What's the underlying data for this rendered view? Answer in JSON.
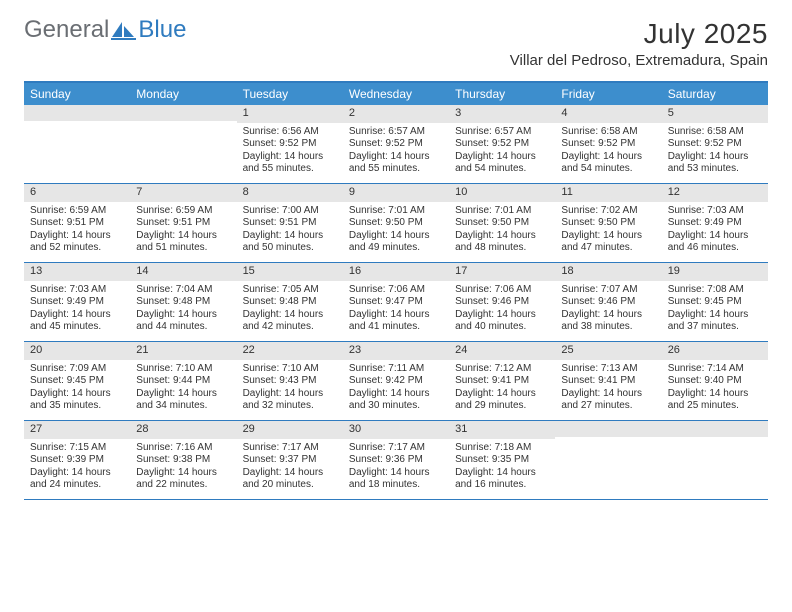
{
  "brand": {
    "part1": "General",
    "part2": "Blue"
  },
  "title": "July 2025",
  "location": "Villar del Pedroso, Extremadura, Spain",
  "colors": {
    "header_bg": "#3d8ecd",
    "accent_border": "#2f7bbf",
    "daynum_bg": "#e6e6e6",
    "text": "#333333",
    "white": "#ffffff",
    "logo_gray": "#6a6e73"
  },
  "daysOfWeek": [
    "Sunday",
    "Monday",
    "Tuesday",
    "Wednesday",
    "Thursday",
    "Friday",
    "Saturday"
  ],
  "weeks": [
    [
      null,
      null,
      {
        "n": "1",
        "sr": "6:56 AM",
        "ss": "9:52 PM",
        "dl": "14 hours and 55 minutes."
      },
      {
        "n": "2",
        "sr": "6:57 AM",
        "ss": "9:52 PM",
        "dl": "14 hours and 55 minutes."
      },
      {
        "n": "3",
        "sr": "6:57 AM",
        "ss": "9:52 PM",
        "dl": "14 hours and 54 minutes."
      },
      {
        "n": "4",
        "sr": "6:58 AM",
        "ss": "9:52 PM",
        "dl": "14 hours and 54 minutes."
      },
      {
        "n": "5",
        "sr": "6:58 AM",
        "ss": "9:52 PM",
        "dl": "14 hours and 53 minutes."
      }
    ],
    [
      {
        "n": "6",
        "sr": "6:59 AM",
        "ss": "9:51 PM",
        "dl": "14 hours and 52 minutes."
      },
      {
        "n": "7",
        "sr": "6:59 AM",
        "ss": "9:51 PM",
        "dl": "14 hours and 51 minutes."
      },
      {
        "n": "8",
        "sr": "7:00 AM",
        "ss": "9:51 PM",
        "dl": "14 hours and 50 minutes."
      },
      {
        "n": "9",
        "sr": "7:01 AM",
        "ss": "9:50 PM",
        "dl": "14 hours and 49 minutes."
      },
      {
        "n": "10",
        "sr": "7:01 AM",
        "ss": "9:50 PM",
        "dl": "14 hours and 48 minutes."
      },
      {
        "n": "11",
        "sr": "7:02 AM",
        "ss": "9:50 PM",
        "dl": "14 hours and 47 minutes."
      },
      {
        "n": "12",
        "sr": "7:03 AM",
        "ss": "9:49 PM",
        "dl": "14 hours and 46 minutes."
      }
    ],
    [
      {
        "n": "13",
        "sr": "7:03 AM",
        "ss": "9:49 PM",
        "dl": "14 hours and 45 minutes."
      },
      {
        "n": "14",
        "sr": "7:04 AM",
        "ss": "9:48 PM",
        "dl": "14 hours and 44 minutes."
      },
      {
        "n": "15",
        "sr": "7:05 AM",
        "ss": "9:48 PM",
        "dl": "14 hours and 42 minutes."
      },
      {
        "n": "16",
        "sr": "7:06 AM",
        "ss": "9:47 PM",
        "dl": "14 hours and 41 minutes."
      },
      {
        "n": "17",
        "sr": "7:06 AM",
        "ss": "9:46 PM",
        "dl": "14 hours and 40 minutes."
      },
      {
        "n": "18",
        "sr": "7:07 AM",
        "ss": "9:46 PM",
        "dl": "14 hours and 38 minutes."
      },
      {
        "n": "19",
        "sr": "7:08 AM",
        "ss": "9:45 PM",
        "dl": "14 hours and 37 minutes."
      }
    ],
    [
      {
        "n": "20",
        "sr": "7:09 AM",
        "ss": "9:45 PM",
        "dl": "14 hours and 35 minutes."
      },
      {
        "n": "21",
        "sr": "7:10 AM",
        "ss": "9:44 PM",
        "dl": "14 hours and 34 minutes."
      },
      {
        "n": "22",
        "sr": "7:10 AM",
        "ss": "9:43 PM",
        "dl": "14 hours and 32 minutes."
      },
      {
        "n": "23",
        "sr": "7:11 AM",
        "ss": "9:42 PM",
        "dl": "14 hours and 30 minutes."
      },
      {
        "n": "24",
        "sr": "7:12 AM",
        "ss": "9:41 PM",
        "dl": "14 hours and 29 minutes."
      },
      {
        "n": "25",
        "sr": "7:13 AM",
        "ss": "9:41 PM",
        "dl": "14 hours and 27 minutes."
      },
      {
        "n": "26",
        "sr": "7:14 AM",
        "ss": "9:40 PM",
        "dl": "14 hours and 25 minutes."
      }
    ],
    [
      {
        "n": "27",
        "sr": "7:15 AM",
        "ss": "9:39 PM",
        "dl": "14 hours and 24 minutes."
      },
      {
        "n": "28",
        "sr": "7:16 AM",
        "ss": "9:38 PM",
        "dl": "14 hours and 22 minutes."
      },
      {
        "n": "29",
        "sr": "7:17 AM",
        "ss": "9:37 PM",
        "dl": "14 hours and 20 minutes."
      },
      {
        "n": "30",
        "sr": "7:17 AM",
        "ss": "9:36 PM",
        "dl": "14 hours and 18 minutes."
      },
      {
        "n": "31",
        "sr": "7:18 AM",
        "ss": "9:35 PM",
        "dl": "14 hours and 16 minutes."
      },
      null,
      null
    ]
  ],
  "labels": {
    "sunrise": "Sunrise:",
    "sunset": "Sunset:",
    "daylight": "Daylight:"
  }
}
